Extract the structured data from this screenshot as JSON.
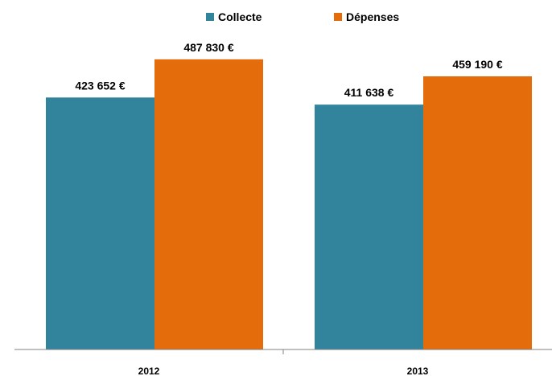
{
  "chart_data": {
    "type": "bar",
    "title": "",
    "xlabel": "",
    "ylabel": "",
    "categories": [
      "2012",
      "2013"
    ],
    "ylim": [
      0,
      520000
    ],
    "grid": false,
    "legend_position": "top-center",
    "series": [
      {
        "name": "Collecte",
        "color": "#31849B",
        "values": [
          423652,
          411638
        ],
        "labels": [
          "423 652 €",
          "411 638 €"
        ]
      },
      {
        "name": "Dépenses",
        "color": "#E46C0A",
        "values": [
          487830,
          459190
        ],
        "labels": [
          "487 830 €",
          "459 190 €"
        ]
      }
    ]
  }
}
